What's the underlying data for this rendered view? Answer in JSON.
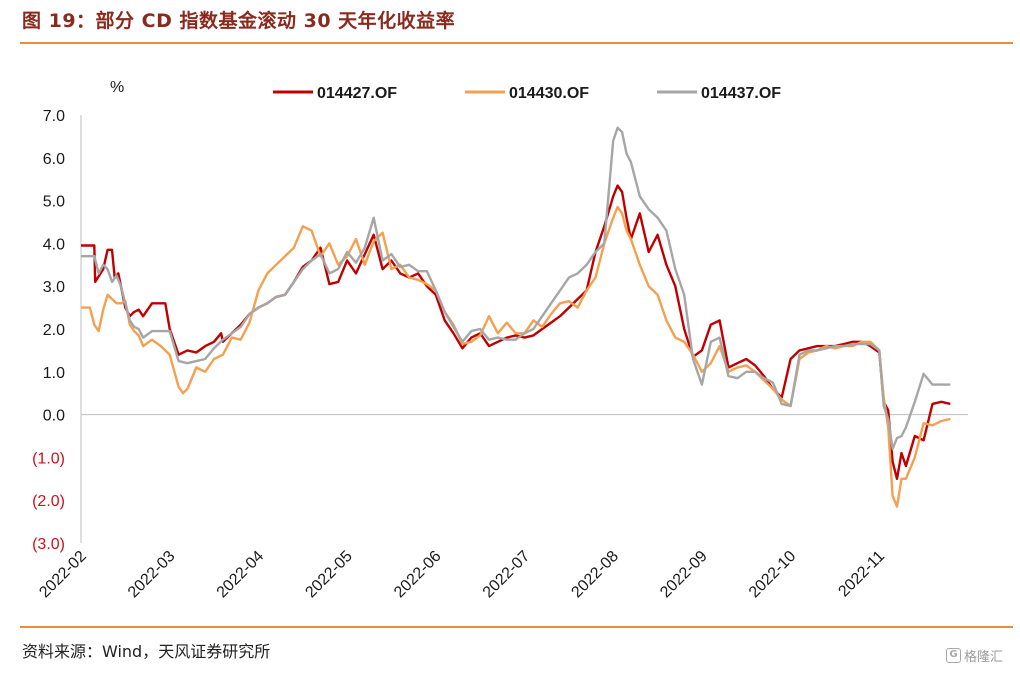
{
  "header": {
    "figure_title": "图 19：部分 CD 指数基金滚动 30 天年化收益率"
  },
  "footer": {
    "source": "资料来源：Wind，天风证券研究所",
    "watermark": "格隆汇",
    "watermark_icon": "G"
  },
  "colors": {
    "rule": "#e58f3a",
    "negative_tick": "#d0101a"
  },
  "chart_data": {
    "type": "line",
    "y_unit": "%",
    "ylim": [
      -3.0,
      7.0
    ],
    "y_ticks": [
      7.0,
      6.0,
      5.0,
      4.0,
      3.0,
      2.0,
      1.0,
      0.0,
      -1.0,
      -2.0,
      -3.0
    ],
    "y_tick_labels": [
      "7.0",
      "6.0",
      "5.0",
      "4.0",
      "3.0",
      "2.0",
      "1.0",
      "0.0",
      "(1.0)",
      "(2.0)",
      "(3.0)"
    ],
    "x_tick_labels": [
      "2022-02",
      "2022-03",
      "2022-04",
      "2022-05",
      "2022-06",
      "2022-07",
      "2022-08",
      "2022-09",
      "2022-10",
      "2022-11"
    ],
    "xlim": [
      0,
      10
    ],
    "grid": false,
    "legend_position": "top",
    "series": [
      {
        "name": "014427.OF",
        "color": "#c00000",
        "x": [
          0.0,
          0.15,
          0.16,
          0.25,
          0.3,
          0.35,
          0.38,
          0.42,
          0.47,
          0.5,
          0.55,
          0.6,
          0.65,
          0.7,
          0.8,
          0.9,
          0.95,
          1.0,
          1.1,
          1.2,
          1.3,
          1.4,
          1.5,
          1.58,
          1.6,
          1.7,
          1.8,
          1.9,
          2.0,
          2.1,
          2.2,
          2.3,
          2.4,
          2.5,
          2.6,
          2.7,
          2.8,
          2.9,
          3.0,
          3.1,
          3.2,
          3.3,
          3.4,
          3.5,
          3.6,
          3.7,
          3.8,
          3.9,
          4.0,
          4.1,
          4.2,
          4.3,
          4.4,
          4.5,
          4.6,
          4.7,
          4.8,
          4.9,
          5.0,
          5.1,
          5.2,
          5.3,
          5.4,
          5.5,
          5.6,
          5.7,
          5.8,
          5.9,
          6.0,
          6.05,
          6.1,
          6.15,
          6.2,
          6.3,
          6.4,
          6.5,
          6.6,
          6.7,
          6.8,
          6.9,
          7.0,
          7.1,
          7.2,
          7.3,
          7.4,
          7.5,
          7.6,
          7.7,
          7.8,
          7.9,
          8.0,
          8.1,
          8.2,
          8.3,
          8.4,
          8.5,
          8.6,
          8.7,
          8.8,
          8.9,
          9.0,
          9.05,
          9.1,
          9.15,
          9.2,
          9.25,
          9.3,
          9.4,
          9.5,
          9.6,
          9.7,
          9.8
        ],
        "y": [
          3.95,
          3.95,
          3.1,
          3.4,
          3.85,
          3.85,
          3.2,
          3.3,
          2.8,
          2.5,
          2.3,
          2.4,
          2.45,
          2.3,
          2.6,
          2.6,
          2.6,
          2.0,
          1.4,
          1.5,
          1.45,
          1.6,
          1.7,
          1.9,
          1.7,
          1.9,
          2.1,
          2.35,
          2.5,
          2.6,
          2.75,
          2.8,
          3.1,
          3.45,
          3.6,
          3.9,
          3.05,
          3.1,
          3.6,
          3.3,
          3.75,
          4.2,
          3.4,
          3.6,
          3.3,
          3.2,
          3.3,
          3.0,
          2.8,
          2.2,
          1.9,
          1.55,
          1.8,
          1.9,
          1.6,
          1.7,
          1.8,
          1.85,
          1.8,
          1.85,
          2.0,
          2.15,
          2.3,
          2.5,
          2.7,
          2.9,
          3.8,
          4.4,
          5.1,
          5.35,
          5.2,
          4.6,
          4.1,
          4.7,
          3.8,
          4.2,
          3.5,
          3.0,
          2.0,
          1.35,
          1.5,
          2.1,
          2.2,
          1.1,
          1.2,
          1.3,
          1.15,
          0.9,
          0.6,
          0.4,
          1.3,
          1.5,
          1.55,
          1.6,
          1.6,
          1.6,
          1.65,
          1.7,
          1.7,
          1.6,
          1.45,
          0.3,
          0.1,
          -1.1,
          -1.5,
          -0.9,
          -1.2,
          -0.5,
          -0.6,
          0.25,
          0.3,
          0.25
        ]
      },
      {
        "name": "014430.OF",
        "color": "#f4a050",
        "x": [
          0.0,
          0.1,
          0.15,
          0.2,
          0.25,
          0.3,
          0.35,
          0.4,
          0.45,
          0.5,
          0.55,
          0.6,
          0.65,
          0.7,
          0.8,
          0.9,
          1.0,
          1.1,
          1.15,
          1.2,
          1.3,
          1.4,
          1.5,
          1.6,
          1.7,
          1.8,
          1.9,
          2.0,
          2.1,
          2.2,
          2.3,
          2.4,
          2.5,
          2.6,
          2.7,
          2.8,
          2.9,
          3.0,
          3.1,
          3.2,
          3.3,
          3.4,
          3.5,
          3.6,
          3.7,
          3.8,
          3.9,
          4.0,
          4.1,
          4.2,
          4.3,
          4.4,
          4.5,
          4.6,
          4.7,
          4.8,
          4.9,
          5.0,
          5.1,
          5.2,
          5.3,
          5.4,
          5.5,
          5.6,
          5.7,
          5.8,
          5.9,
          6.0,
          6.05,
          6.1,
          6.15,
          6.2,
          6.3,
          6.4,
          6.5,
          6.6,
          6.7,
          6.8,
          6.9,
          7.0,
          7.1,
          7.2,
          7.3,
          7.4,
          7.5,
          7.6,
          7.7,
          7.8,
          7.9,
          8.0,
          8.1,
          8.2,
          8.3,
          8.4,
          8.5,
          8.6,
          8.7,
          8.8,
          8.9,
          9.0,
          9.05,
          9.1,
          9.15,
          9.2,
          9.25,
          9.3,
          9.4,
          9.5,
          9.6,
          9.7,
          9.8
        ],
        "y": [
          2.5,
          2.5,
          2.1,
          1.95,
          2.45,
          2.8,
          2.7,
          2.6,
          2.6,
          2.65,
          2.1,
          1.95,
          1.85,
          1.6,
          1.75,
          1.6,
          1.4,
          0.65,
          0.5,
          0.6,
          1.1,
          1.0,
          1.3,
          1.4,
          1.8,
          1.75,
          2.15,
          2.9,
          3.3,
          3.5,
          3.7,
          3.9,
          4.4,
          4.3,
          3.7,
          4.0,
          3.5,
          3.7,
          4.1,
          3.5,
          4.05,
          4.25,
          3.4,
          3.5,
          3.2,
          3.15,
          3.05,
          2.9,
          2.4,
          2.1,
          1.65,
          1.7,
          1.85,
          2.3,
          1.9,
          2.15,
          1.9,
          1.9,
          2.2,
          2.05,
          2.35,
          2.6,
          2.65,
          2.5,
          2.9,
          3.2,
          4.0,
          4.6,
          4.85,
          4.7,
          4.3,
          4.1,
          3.5,
          3.0,
          2.8,
          2.2,
          1.8,
          1.7,
          1.4,
          1.0,
          1.2,
          1.6,
          1.0,
          1.1,
          1.15,
          1.0,
          0.8,
          0.6,
          0.35,
          0.2,
          1.3,
          1.45,
          1.5,
          1.6,
          1.55,
          1.6,
          1.6,
          1.7,
          1.7,
          1.5,
          0.4,
          -0.3,
          -1.9,
          -2.15,
          -1.5,
          -1.5,
          -1.0,
          -0.2,
          -0.25,
          -0.15,
          -0.1
        ]
      },
      {
        "name": "014437.OF",
        "color": "#a6a6a6",
        "x": [
          0.0,
          0.15,
          0.2,
          0.25,
          0.3,
          0.35,
          0.4,
          0.45,
          0.5,
          0.55,
          0.6,
          0.65,
          0.7,
          0.8,
          0.9,
          1.0,
          1.1,
          1.2,
          1.3,
          1.4,
          1.5,
          1.6,
          1.7,
          1.8,
          1.9,
          2.0,
          2.1,
          2.2,
          2.3,
          2.4,
          2.5,
          2.6,
          2.7,
          2.8,
          2.9,
          3.0,
          3.1,
          3.2,
          3.3,
          3.4,
          3.5,
          3.6,
          3.7,
          3.8,
          3.9,
          4.0,
          4.1,
          4.2,
          4.3,
          4.4,
          4.5,
          4.6,
          4.7,
          4.8,
          4.9,
          5.0,
          5.1,
          5.2,
          5.3,
          5.4,
          5.5,
          5.6,
          5.7,
          5.8,
          5.9,
          6.0,
          6.05,
          6.1,
          6.15,
          6.2,
          6.3,
          6.4,
          6.5,
          6.6,
          6.7,
          6.8,
          6.9,
          7.0,
          7.1,
          7.2,
          7.3,
          7.4,
          7.5,
          7.6,
          7.7,
          7.8,
          7.9,
          8.0,
          8.1,
          8.2,
          8.3,
          8.4,
          8.5,
          8.6,
          8.7,
          8.8,
          8.9,
          9.0,
          9.05,
          9.1,
          9.15,
          9.2,
          9.25,
          9.3,
          9.4,
          9.5,
          9.6,
          9.7,
          9.8
        ],
        "y": [
          3.7,
          3.7,
          3.3,
          3.5,
          3.4,
          3.1,
          3.25,
          3.0,
          2.6,
          2.2,
          2.05,
          2.0,
          1.8,
          1.95,
          1.95,
          1.95,
          1.25,
          1.2,
          1.25,
          1.3,
          1.55,
          1.75,
          1.9,
          2.05,
          2.35,
          2.5,
          2.6,
          2.75,
          2.8,
          3.1,
          3.4,
          3.6,
          3.75,
          3.3,
          3.4,
          3.8,
          3.55,
          3.9,
          4.6,
          3.6,
          3.75,
          3.45,
          3.5,
          3.35,
          3.35,
          2.9,
          2.4,
          2.05,
          1.7,
          1.95,
          2.0,
          1.75,
          1.8,
          1.75,
          1.75,
          1.9,
          2.0,
          2.3,
          2.6,
          2.9,
          3.2,
          3.3,
          3.5,
          3.8,
          4.0,
          6.4,
          6.7,
          6.6,
          6.1,
          5.9,
          5.1,
          4.8,
          4.6,
          4.3,
          3.4,
          2.8,
          1.3,
          0.7,
          1.7,
          1.8,
          0.9,
          0.85,
          1.0,
          1.0,
          0.85,
          0.75,
          0.25,
          0.2,
          1.4,
          1.5,
          1.5,
          1.55,
          1.6,
          1.6,
          1.65,
          1.65,
          1.65,
          1.5,
          0.2,
          -0.1,
          -0.8,
          -0.55,
          -0.5,
          -0.3,
          0.3,
          0.95,
          0.7,
          0.7,
          0.7
        ]
      }
    ]
  }
}
